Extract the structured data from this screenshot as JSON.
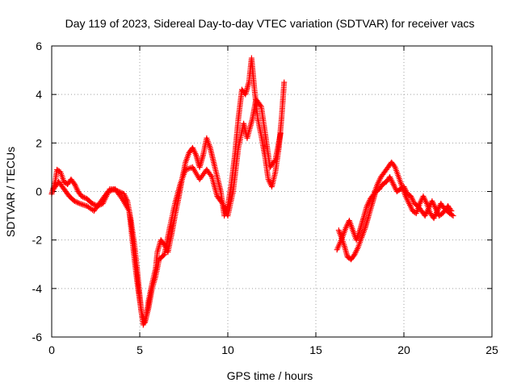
{
  "chart_data": {
    "type": "scatter",
    "title": "Day 119 of 2023, Sidereal Day-to-day VTEC variation (SDTVAR) for receiver vacs",
    "xlabel": "GPS time / hours",
    "ylabel": "SDTVAR / TECUs",
    "xlim": [
      0,
      25
    ],
    "ylim": [
      -6,
      6
    ],
    "xticks": [
      0,
      5,
      10,
      15,
      20,
      25
    ],
    "yticks": [
      -6,
      -4,
      -2,
      0,
      2,
      4,
      6
    ],
    "xtick_labels": [
      "0",
      "5",
      "10",
      "15",
      "20",
      "25"
    ],
    "ytick_labels": [
      "-6",
      "-4",
      "-2",
      "0",
      "2",
      "4",
      "6"
    ],
    "grid": true,
    "marker": "+",
    "color": "#ff0000",
    "series": [
      {
        "name": "vacs",
        "segments": [
          [
            [
              0.0,
              -0.1
            ],
            [
              0.2,
              0.4
            ],
            [
              0.3,
              0.9
            ],
            [
              0.5,
              0.8
            ],
            [
              0.7,
              0.4
            ],
            [
              0.9,
              0.3
            ],
            [
              1.1,
              0.5
            ],
            [
              1.3,
              0.3
            ],
            [
              1.5,
              0.0
            ],
            [
              1.7,
              -0.2
            ],
            [
              2.0,
              -0.3
            ],
            [
              2.3,
              -0.5
            ],
            [
              2.6,
              -0.6
            ],
            [
              2.9,
              -0.5
            ],
            [
              3.1,
              -0.2
            ],
            [
              3.3,
              0.1
            ],
            [
              3.5,
              0.1
            ],
            [
              3.8,
              0.0
            ],
            [
              4.1,
              -0.1
            ],
            [
              4.3,
              -0.4
            ],
            [
              4.5,
              -1.2
            ],
            [
              4.7,
              -2.2
            ],
            [
              4.85,
              -3.2
            ],
            [
              5.0,
              -4.3
            ],
            [
              5.1,
              -5.0
            ],
            [
              5.2,
              -5.5
            ],
            [
              5.35,
              -5.2
            ],
            [
              5.5,
              -4.5
            ],
            [
              5.7,
              -3.8
            ],
            [
              5.9,
              -3.2
            ],
            [
              6.0,
              -2.5
            ],
            [
              6.2,
              -2.0
            ],
            [
              6.4,
              -2.2
            ],
            [
              6.6,
              -2.5
            ],
            [
              6.8,
              -1.8
            ],
            [
              7.0,
              -1.0
            ],
            [
              7.2,
              -0.3
            ],
            [
              7.4,
              0.5
            ],
            [
              7.6,
              1.2
            ],
            [
              7.8,
              1.6
            ],
            [
              8.0,
              1.8
            ],
            [
              8.2,
              1.5
            ],
            [
              8.4,
              1.0
            ],
            [
              8.6,
              1.5
            ],
            [
              8.8,
              2.2
            ],
            [
              9.0,
              1.8
            ],
            [
              9.2,
              1.2
            ],
            [
              9.4,
              0.6
            ],
            [
              9.6,
              0.0
            ],
            [
              9.8,
              -1.0
            ],
            [
              10.0,
              -0.6
            ],
            [
              10.2,
              0.3
            ],
            [
              10.4,
              1.5
            ],
            [
              10.6,
              3.0
            ],
            [
              10.8,
              4.2
            ],
            [
              11.0,
              4.0
            ],
            [
              11.2,
              4.5
            ],
            [
              11.35,
              5.5
            ],
            [
              11.5,
              4.3
            ],
            [
              11.7,
              3.0
            ],
            [
              11.9,
              2.3
            ],
            [
              12.1,
              1.5
            ],
            [
              12.3,
              0.5
            ],
            [
              12.5,
              0.2
            ],
            [
              12.7,
              0.8
            ],
            [
              12.9,
              1.8
            ],
            [
              13.05,
              3.0
            ],
            [
              13.2,
              4.5
            ]
          ],
          [
            [
              0.1,
              0.1
            ],
            [
              0.4,
              0.4
            ],
            [
              0.7,
              0.1
            ],
            [
              1.0,
              -0.2
            ],
            [
              1.3,
              -0.4
            ],
            [
              1.6,
              -0.5
            ],
            [
              2.0,
              -0.6
            ],
            [
              2.4,
              -0.8
            ],
            [
              2.8,
              -0.4
            ],
            [
              3.2,
              0.0
            ],
            [
              3.6,
              0.1
            ],
            [
              4.0,
              -0.3
            ],
            [
              4.4,
              -0.8
            ],
            [
              4.7,
              -2.8
            ],
            [
              4.9,
              -4.0
            ],
            [
              5.1,
              -5.0
            ],
            [
              5.3,
              -5.4
            ],
            [
              5.5,
              -4.8
            ],
            [
              5.7,
              -4.0
            ],
            [
              5.9,
              -3.5
            ],
            [
              6.1,
              -2.8
            ],
            [
              6.4,
              -2.6
            ],
            [
              6.7,
              -1.5
            ],
            [
              7.0,
              -0.5
            ],
            [
              7.3,
              0.3
            ],
            [
              7.6,
              0.9
            ],
            [
              8.0,
              1.0
            ],
            [
              8.4,
              0.5
            ],
            [
              8.8,
              0.9
            ],
            [
              9.1,
              0.6
            ],
            [
              9.4,
              -0.2
            ],
            [
              9.7,
              -0.5
            ],
            [
              10.0,
              -1.0
            ],
            [
              10.3,
              0.0
            ],
            [
              10.6,
              1.8
            ],
            [
              10.9,
              2.8
            ],
            [
              11.1,
              2.2
            ],
            [
              11.4,
              3.0
            ],
            [
              11.6,
              3.8
            ],
            [
              11.9,
              3.5
            ],
            [
              12.1,
              2.5
            ],
            [
              12.4,
              1.0
            ],
            [
              12.7,
              1.3
            ],
            [
              13.0,
              2.4
            ]
          ],
          [
            [
              16.2,
              -2.4
            ],
            [
              16.5,
              -1.9
            ],
            [
              16.7,
              -1.5
            ],
            [
              16.9,
              -1.2
            ],
            [
              17.1,
              -1.6
            ],
            [
              17.3,
              -2.0
            ],
            [
              17.5,
              -1.6
            ],
            [
              17.7,
              -1.1
            ],
            [
              17.9,
              -0.6
            ],
            [
              18.1,
              -0.3
            ],
            [
              18.3,
              -0.1
            ],
            [
              18.5,
              0.3
            ],
            [
              18.7,
              0.6
            ],
            [
              18.9,
              0.8
            ],
            [
              19.1,
              1.0
            ],
            [
              19.3,
              1.2
            ],
            [
              19.5,
              1.0
            ],
            [
              19.7,
              0.6
            ],
            [
              19.9,
              0.2
            ],
            [
              20.1,
              -0.2
            ],
            [
              20.3,
              -0.5
            ],
            [
              20.5,
              -0.8
            ],
            [
              20.7,
              -0.9
            ],
            [
              20.9,
              -0.5
            ],
            [
              21.1,
              -0.2
            ],
            [
              21.3,
              -0.5
            ],
            [
              21.5,
              -0.9
            ],
            [
              21.7,
              -1.1
            ],
            [
              21.9,
              -0.8
            ],
            [
              22.1,
              -0.5
            ],
            [
              22.3,
              -0.7
            ],
            [
              22.6,
              -0.9
            ],
            [
              22.8,
              -1.0
            ]
          ],
          [
            [
              16.3,
              -1.6
            ],
            [
              16.6,
              -2.2
            ],
            [
              16.8,
              -2.7
            ],
            [
              17.0,
              -2.8
            ],
            [
              17.2,
              -2.6
            ],
            [
              17.4,
              -2.3
            ],
            [
              17.6,
              -1.9
            ],
            [
              17.8,
              -1.5
            ],
            [
              18.0,
              -1.0
            ],
            [
              18.2,
              -0.5
            ],
            [
              18.4,
              0.0
            ],
            [
              18.6,
              0.1
            ],
            [
              18.8,
              0.3
            ],
            [
              19.0,
              0.4
            ],
            [
              19.2,
              0.6
            ],
            [
              19.4,
              0.3
            ],
            [
              19.6,
              0.0
            ],
            [
              19.8,
              0.1
            ],
            [
              20.0,
              0.2
            ],
            [
              20.2,
              -0.1
            ],
            [
              20.4,
              -0.2
            ],
            [
              20.6,
              -0.5
            ],
            [
              20.8,
              -0.6
            ],
            [
              21.0,
              -0.8
            ],
            [
              21.2,
              -1.0
            ],
            [
              21.4,
              -0.7
            ],
            [
              21.6,
              -0.4
            ],
            [
              21.8,
              -0.7
            ],
            [
              22.0,
              -1.0
            ],
            [
              22.2,
              -0.9
            ],
            [
              22.5,
              -0.6
            ],
            [
              22.7,
              -0.8
            ]
          ]
        ]
      }
    ]
  }
}
